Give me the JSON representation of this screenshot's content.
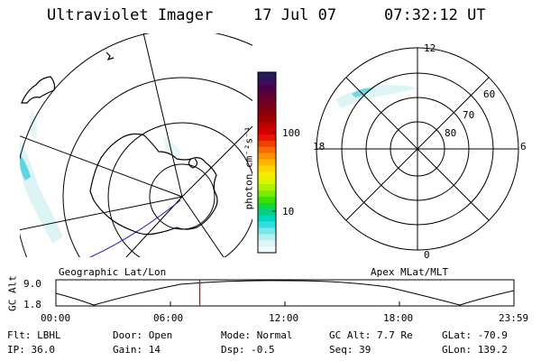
{
  "header": {
    "title": "Ultraviolet Imager",
    "date": "17 Jul 07",
    "time": "07:32:12 UT"
  },
  "colorbar": {
    "label": "photon cm⁻²s⁻¹",
    "ticks": [
      "100",
      "10"
    ],
    "colors": [
      "#2a1a5a",
      "#3a0f5a",
      "#4a004a",
      "#5a0038",
      "#6a0028",
      "#7a0018",
      "#8c000c",
      "#a00000",
      "#bb0000",
      "#d40000",
      "#e81500",
      "#f04000",
      "#f56d00",
      "#fb9200",
      "#ffb600",
      "#ffd400",
      "#f5ec00",
      "#d9f500",
      "#aef200",
      "#7aec00",
      "#3ee000",
      "#10d640",
      "#00d08a",
      "#00d7c0",
      "#30dde0",
      "#7ae6e8",
      "#b4eeee",
      "#dcf5f5",
      "#f0fafa"
    ]
  },
  "left_panel": {
    "label": "Geographic Lat/Lon"
  },
  "right_panel": {
    "label": "Apex MLat/MLT",
    "mlt_labels": [
      "12",
      "18",
      "6",
      "0"
    ],
    "lat_labels": [
      "60",
      "70",
      "80"
    ]
  },
  "altitude_plot": {
    "ylabel": "GC Alt",
    "ymax_label": "9.0",
    "ymin_label": "1.8",
    "x_ticks": [
      "00:00",
      "06:00",
      "12:00",
      "18:00",
      "23:59"
    ],
    "current_time_marker_hours": 7.54
  },
  "footer": {
    "filter": "Flt: LBHL",
    "door": "Door: Open",
    "mode": "Mode: Normal",
    "gc_alt": "GC Alt: 7.7 Re",
    "glat": "GLat: -70.9",
    "ip": "IP: 36.0",
    "gain": "Gain: 14",
    "dsp": "Dsp:   -0.5",
    "seq": "Seq: 39",
    "glon": "GLon: 139.2"
  }
}
